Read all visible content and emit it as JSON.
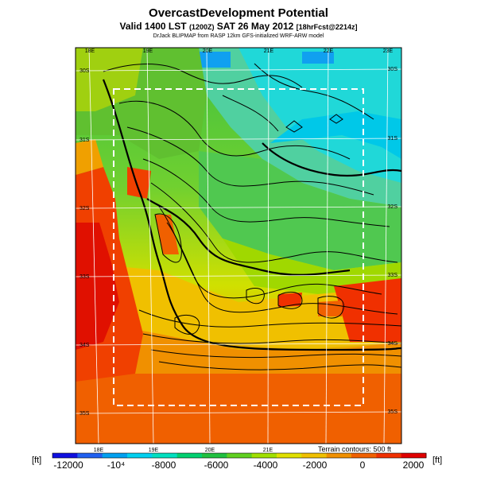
{
  "header": {
    "title": "OvercastDevelopment Potential",
    "valid_prefix": "Valid 1400 LST",
    "valid_zulu": "(1200Z)",
    "valid_date": "SAT 26 May 2012",
    "valid_fcst": "[18hrFcst@2214z]",
    "credit": "DrJack BLIPMAP from RASP 12km GFS-initialized WRF-ARW model"
  },
  "map": {
    "lon_labels_top": [
      "18E",
      "19E",
      "20E",
      "21E",
      "22E",
      "23E"
    ],
    "lon_labels_bottom": [
      "18E",
      "19E",
      "20E",
      "21E"
    ],
    "lat_labels_left": [
      "30S",
      "31S",
      "32S",
      "33S",
      "34S",
      "35S"
    ],
    "lat_labels_right": [
      "30S",
      "31S",
      "32S",
      "33S",
      "34S",
      "35S"
    ],
    "terrain_note": "Terrain contours: 500 ft"
  },
  "colorbar": {
    "unit_left": "[ft]",
    "unit_right": "[ft]",
    "tick_labels": [
      "-12000",
      "-10⁴",
      "-8000",
      "-6000",
      "-4000",
      "-2000",
      "0",
      "2000"
    ],
    "colors": [
      "#1010e0",
      "#2060f0",
      "#00a0f0",
      "#00d0f0",
      "#00e0c0",
      "#00d070",
      "#20c040",
      "#60d020",
      "#a0e000",
      "#e0e000",
      "#f0c000",
      "#f09000",
      "#f06000",
      "#f03000",
      "#e00000"
    ]
  }
}
